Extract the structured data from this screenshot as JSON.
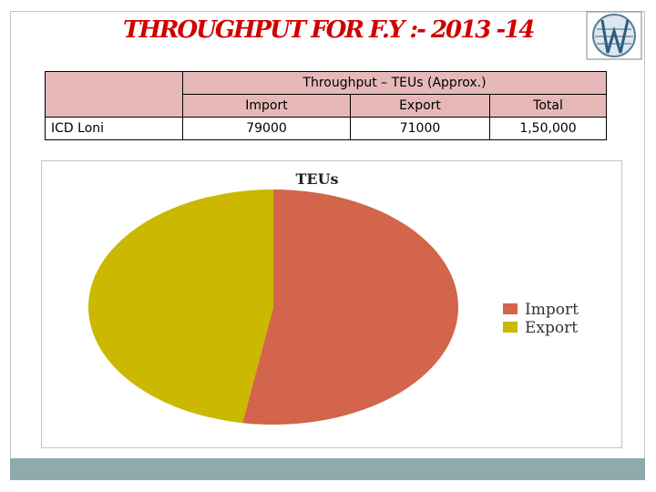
{
  "slide": {
    "title": "THROUGHPUT FOR F.Y :- 2013 -14"
  },
  "table": {
    "group_header": "Throughput – TEUs (Approx.)",
    "columns": [
      "Import",
      "Export",
      "Total"
    ],
    "rows": [
      {
        "label": "ICD Loni",
        "import": "79000",
        "export": "71000",
        "total": "1,50,000"
      }
    ]
  },
  "chart_data": {
    "type": "pie",
    "title": "TEUs",
    "categories": [
      "Import",
      "Export"
    ],
    "values": [
      79000,
      71000
    ],
    "colors": [
      "#d2654b",
      "#cbb800"
    ],
    "legend_position": "right"
  }
}
